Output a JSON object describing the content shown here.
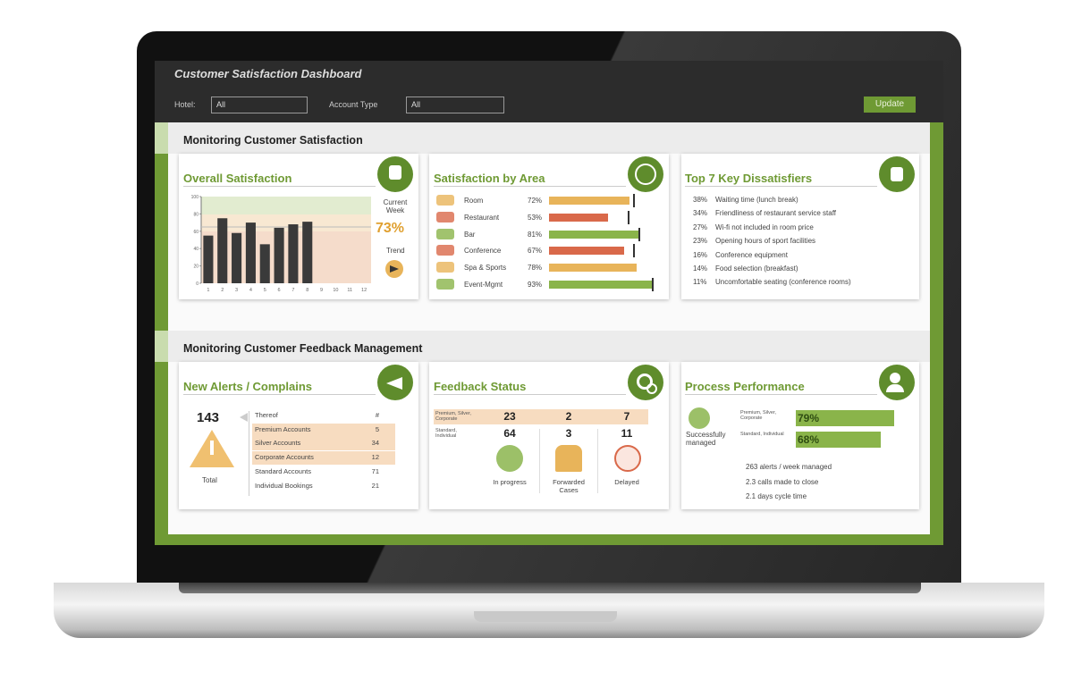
{
  "header": {
    "title": "Customer Satisfaction Dashboard",
    "filters": [
      {
        "label": "Hotel:",
        "value": "All"
      },
      {
        "label": "Account Type",
        "value": "All"
      }
    ],
    "button": "Update"
  },
  "sections": [
    {
      "title": "Monitoring Customer Satisfaction"
    },
    {
      "title": "Monitoring Customer Feedback Management"
    }
  ],
  "overall_satisfaction": {
    "title": "Overall Satisfaction",
    "chart": {
      "type": "bar",
      "categories": [
        "1",
        "2",
        "3",
        "4",
        "5",
        "6",
        "7",
        "8",
        "9",
        "10",
        "11",
        "12"
      ],
      "values": [
        55,
        75,
        58,
        70,
        45,
        64,
        68,
        71,
        null,
        null,
        null,
        null
      ],
      "color": "#3a3a3a",
      "ylim": [
        0,
        100
      ],
      "yticks": [
        0,
        20,
        40,
        60,
        80,
        100
      ]
    },
    "current_label": "Current Week",
    "current_value": "73%",
    "trend_label": "Trend"
  },
  "satisfaction_by_area": {
    "title": "Satisfaction by Area",
    "categories": [
      "Room",
      "Restaurant",
      "Bar",
      "Conference",
      "Spa & Sports",
      "Event-Mgmt"
    ],
    "values": [
      72,
      53,
      81,
      67,
      78,
      93
    ],
    "value_labels": [
      "72%",
      "53%",
      "81%",
      "67%",
      "78%",
      "93%"
    ],
    "colors": [
      "#e8b45a",
      "#d9694a",
      "#8ab44a",
      "#d9694a",
      "#e8b45a",
      "#8ab44a"
    ],
    "targets": [
      75,
      70,
      80,
      75,
      null,
      92
    ]
  },
  "dissatisfiers": {
    "title": "Top 7 Key Dissatisfiers",
    "items": [
      {
        "value": "38%",
        "label": "Waiting time (lunch break)"
      },
      {
        "value": "34%",
        "label": "Friendliness of restaurant service staff"
      },
      {
        "value": "27%",
        "label": "Wi-fi not included in room price"
      },
      {
        "value": "23%",
        "label": "Opening hours of sport facilities"
      },
      {
        "value": "16%",
        "label": "Conference equipment"
      },
      {
        "value": "14%",
        "label": "Food selection (breakfast)"
      },
      {
        "value": "11%",
        "label": "Uncomfortable seating (conference rooms)"
      }
    ]
  },
  "alerts": {
    "title": "New Alerts / Complains",
    "total": "143",
    "total_label": "Total",
    "rows": [
      [
        "Thereof",
        "#"
      ],
      [
        "Premium Accounts",
        "5"
      ],
      [
        "Silver Accounts",
        "34"
      ],
      [
        "Corporate Accounts",
        "12"
      ],
      [
        "Standard Accounts",
        "71"
      ],
      [
        "Individual Bookings",
        "21"
      ]
    ]
  },
  "feedback_status": {
    "title": "Feedback Status",
    "row_labels": [
      "Premium, Silver, Corporate",
      "Standard, Individual"
    ],
    "rows": [
      [
        "23",
        "2",
        "7"
      ],
      [
        "64",
        "3",
        "11"
      ]
    ],
    "columns": [
      "In progress",
      "Forwarded Cases",
      "Delayed"
    ]
  },
  "process_performance": {
    "title": "Process Performance",
    "icon_label": "Successfully managed",
    "categories": [
      "Premium, Silver, Corporate",
      "Standard, Individual"
    ],
    "values": [
      79,
      68
    ],
    "value_labels": [
      "79%",
      "68%"
    ],
    "stats": [
      "263 alerts / week managed",
      "2.3 calls made to close",
      "2.1 days cycle time"
    ]
  }
}
